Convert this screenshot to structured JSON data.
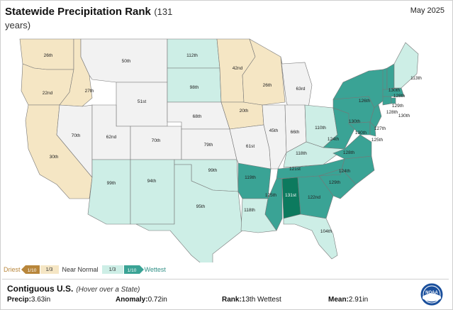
{
  "header": {
    "title": "Statewide Precipitation Rank",
    "subtitle": "(131 years)",
    "date": "May 2025"
  },
  "colors": {
    "driest": "#b8863b",
    "dry_tan": "#f5e6c4",
    "near_normal": "#f2f2f2",
    "wet_light": "#cdeee6",
    "wet_mid": "#5fc0ae",
    "wet_dark": "#3aa395",
    "wettest": "#0c7a5e"
  },
  "states": [
    {
      "id": "WA",
      "rank": "26th"
    },
    {
      "id": "OR",
      "rank": "22nd"
    },
    {
      "id": "ID",
      "rank": "27th"
    },
    {
      "id": "CA",
      "rank": "30th"
    },
    {
      "id": "NV",
      "rank": "70th"
    },
    {
      "id": "MT",
      "rank": "50th"
    },
    {
      "id": "WY",
      "rank": "51st"
    },
    {
      "id": "UT",
      "rank": "62nd"
    },
    {
      "id": "CO",
      "rank": "70th"
    },
    {
      "id": "AZ",
      "rank": "99th"
    },
    {
      "id": "NM",
      "rank": "94th"
    },
    {
      "id": "ND",
      "rank": "112th"
    },
    {
      "id": "SD",
      "rank": "98th"
    },
    {
      "id": "NE",
      "rank": "68th"
    },
    {
      "id": "KS",
      "rank": "79th"
    },
    {
      "id": "OK",
      "rank": "99th"
    },
    {
      "id": "TX",
      "rank": "95th"
    },
    {
      "id": "MN",
      "rank": "42nd"
    },
    {
      "id": "IA",
      "rank": "20th"
    },
    {
      "id": "MO",
      "rank": "61st"
    },
    {
      "id": "AR",
      "rank": "119th"
    },
    {
      "id": "LA",
      "rank": "118th"
    },
    {
      "id": "WI",
      "rank": "26th"
    },
    {
      "id": "IL",
      "rank": "45th"
    },
    {
      "id": "MI",
      "rank": "63rd"
    },
    {
      "id": "IN",
      "rank": "66th"
    },
    {
      "id": "OH",
      "rank": "110th"
    },
    {
      "id": "KY",
      "rank": "118th"
    },
    {
      "id": "TN",
      "rank": "121st"
    },
    {
      "id": "MS",
      "rank": "125th"
    },
    {
      "id": "AL",
      "rank": "131st"
    },
    {
      "id": "GA",
      "rank": "122nd"
    },
    {
      "id": "FL",
      "rank": "104th"
    },
    {
      "id": "SC",
      "rank": "129th"
    },
    {
      "id": "NC",
      "rank": "124th"
    },
    {
      "id": "VA",
      "rank": "128th"
    },
    {
      "id": "WV",
      "rank": "124th"
    },
    {
      "id": "PA",
      "rank": "130th"
    },
    {
      "id": "MD",
      "rank": "130th"
    },
    {
      "id": "DE",
      "rank": "125th"
    },
    {
      "id": "NJ",
      "rank": "127th"
    },
    {
      "id": "NY",
      "rank": "126th"
    },
    {
      "id": "CT",
      "rank": "128th"
    },
    {
      "id": "RI",
      "rank": "130th"
    },
    {
      "id": "MA",
      "rank": "129th"
    },
    {
      "id": "VT",
      "rank": "130th"
    },
    {
      "id": "NH",
      "rank": "128th"
    },
    {
      "id": "ME",
      "rank": "113th"
    }
  ],
  "legend": {
    "driest": "Driest",
    "dry_low": "1/10",
    "dry_third": "1/3",
    "near_normal": "Near Normal",
    "wet_third": "1/3",
    "wet_low": "1/10",
    "wettest": "Wettest"
  },
  "info": {
    "region": "Contiguous U.S.",
    "hint": "(Hover over a State)",
    "precip_label": "Precip:",
    "precip_value": "3.63in",
    "anomaly_label": "Anomaly:",
    "anomaly_value": "0.72in",
    "rank_label": "Rank:",
    "rank_value": "13th Wettest",
    "mean_label": "Mean:",
    "mean_value": "2.91in"
  },
  "logo": {
    "text": "NOAA"
  }
}
